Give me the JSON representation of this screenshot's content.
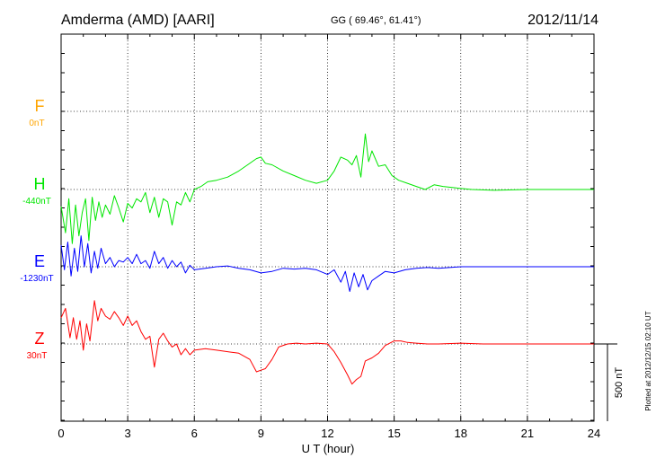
{
  "header": {
    "station": "Amderma (AMD)  [AARI]",
    "coords": "GG ( 69.46°,  61.41°)",
    "date": "2012/11/14"
  },
  "footer_note": "Plotted at 2012/12/15 02:10 UT",
  "scale_label": "500 nT",
  "chart_data": {
    "type": "line",
    "xlabel": "U T (hour)",
    "xlim": [
      0,
      24
    ],
    "xticks": [
      "0",
      "3",
      "6",
      "9",
      "12",
      "15",
      "18",
      "21",
      "24"
    ],
    "grid": true,
    "scale_bar_nT": 500,
    "series": [
      {
        "name": "F",
        "baseline_label": "0nT",
        "color": "#ffa500",
        "points": []
      },
      {
        "name": "H",
        "baseline_label": "-440nT",
        "color": "#00e600",
        "points": [
          [
            0,
            -110
          ],
          [
            0.2,
            -280
          ],
          [
            0.35,
            -60
          ],
          [
            0.5,
            -350
          ],
          [
            0.65,
            -100
          ],
          [
            0.8,
            -300
          ],
          [
            0.95,
            -150
          ],
          [
            1.1,
            -60
          ],
          [
            1.25,
            -330
          ],
          [
            1.4,
            -50
          ],
          [
            1.55,
            -200
          ],
          [
            1.7,
            -80
          ],
          [
            1.85,
            -180
          ],
          [
            2.0,
            -100
          ],
          [
            2.2,
            -160
          ],
          [
            2.4,
            -40
          ],
          [
            2.6,
            -120
          ],
          [
            2.8,
            -210
          ],
          [
            3.0,
            -90
          ],
          [
            3.2,
            -120
          ],
          [
            3.4,
            -60
          ],
          [
            3.6,
            -80
          ],
          [
            3.8,
            -20
          ],
          [
            4.0,
            -150
          ],
          [
            4.2,
            -50
          ],
          [
            4.4,
            -180
          ],
          [
            4.6,
            -60
          ],
          [
            4.8,
            -80
          ],
          [
            5.0,
            -230
          ],
          [
            5.2,
            -80
          ],
          [
            5.4,
            -100
          ],
          [
            5.6,
            -20
          ],
          [
            5.8,
            -80
          ],
          [
            6.0,
            0
          ],
          [
            6.3,
            20
          ],
          [
            6.6,
            50
          ],
          [
            7.0,
            60
          ],
          [
            7.5,
            80
          ],
          [
            8.0,
            120
          ],
          [
            8.4,
            160
          ],
          [
            8.8,
            200
          ],
          [
            9.0,
            210
          ],
          [
            9.2,
            170
          ],
          [
            9.5,
            160
          ],
          [
            10.0,
            120
          ],
          [
            10.5,
            90
          ],
          [
            11.0,
            60
          ],
          [
            11.5,
            40
          ],
          [
            12.0,
            60
          ],
          [
            12.3,
            120
          ],
          [
            12.6,
            210
          ],
          [
            12.9,
            190
          ],
          [
            13.1,
            160
          ],
          [
            13.3,
            220
          ],
          [
            13.5,
            80
          ],
          [
            13.7,
            360
          ],
          [
            13.85,
            180
          ],
          [
            14.0,
            250
          ],
          [
            14.3,
            150
          ],
          [
            14.6,
            160
          ],
          [
            14.9,
            90
          ],
          [
            15.2,
            60
          ],
          [
            15.6,
            40
          ],
          [
            16.0,
            20
          ],
          [
            16.4,
            0
          ],
          [
            16.8,
            30
          ],
          [
            17.2,
            20
          ],
          [
            17.8,
            10
          ],
          [
            18.5,
            0
          ],
          [
            19.5,
            -5
          ],
          [
            21.0,
            0
          ],
          [
            22.5,
            0
          ],
          [
            24.0,
            0
          ]
        ]
      },
      {
        "name": "E",
        "baseline_label": "-1230nT",
        "color": "#0000ff",
        "points": [
          [
            0,
            140
          ],
          [
            0.15,
            -20
          ],
          [
            0.3,
            160
          ],
          [
            0.45,
            -60
          ],
          [
            0.6,
            120
          ],
          [
            0.75,
            -30
          ],
          [
            0.9,
            200
          ],
          [
            1.05,
            0
          ],
          [
            1.2,
            150
          ],
          [
            1.35,
            -40
          ],
          [
            1.5,
            100
          ],
          [
            1.65,
            -10
          ],
          [
            1.8,
            120
          ],
          [
            2.0,
            20
          ],
          [
            2.2,
            60
          ],
          [
            2.4,
            0
          ],
          [
            2.6,
            40
          ],
          [
            2.8,
            30
          ],
          [
            3.0,
            60
          ],
          [
            3.2,
            20
          ],
          [
            3.4,
            80
          ],
          [
            3.6,
            20
          ],
          [
            3.8,
            40
          ],
          [
            4.0,
            -10
          ],
          [
            4.2,
            100
          ],
          [
            4.4,
            20
          ],
          [
            4.6,
            60
          ],
          [
            4.8,
            -10
          ],
          [
            5.0,
            40
          ],
          [
            5.2,
            0
          ],
          [
            5.4,
            30
          ],
          [
            5.6,
            -40
          ],
          [
            5.8,
            10
          ],
          [
            6.0,
            -20
          ],
          [
            6.5,
            -10
          ],
          [
            7.0,
            0
          ],
          [
            7.5,
            5
          ],
          [
            8.0,
            -10
          ],
          [
            8.5,
            -20
          ],
          [
            9.0,
            -40
          ],
          [
            9.5,
            -30
          ],
          [
            10.0,
            -10
          ],
          [
            10.5,
            -15
          ],
          [
            11.0,
            -10
          ],
          [
            11.5,
            -20
          ],
          [
            12.0,
            -50
          ],
          [
            12.3,
            -20
          ],
          [
            12.6,
            -100
          ],
          [
            12.8,
            -30
          ],
          [
            13.0,
            -160
          ],
          [
            13.2,
            -40
          ],
          [
            13.4,
            -130
          ],
          [
            13.6,
            -50
          ],
          [
            13.8,
            -150
          ],
          [
            14.0,
            -90
          ],
          [
            14.3,
            -60
          ],
          [
            14.6,
            -30
          ],
          [
            15.0,
            -40
          ],
          [
            15.5,
            -20
          ],
          [
            16.0,
            -10
          ],
          [
            16.5,
            -5
          ],
          [
            17.0,
            -10
          ],
          [
            18.0,
            0
          ],
          [
            19.0,
            0
          ],
          [
            20.0,
            0
          ],
          [
            21.0,
            0
          ],
          [
            22.0,
            0
          ],
          [
            23.0,
            0
          ],
          [
            24.0,
            0
          ]
        ]
      },
      {
        "name": "Z",
        "baseline_label": "30nT",
        "color": "#ff0000",
        "points": [
          [
            0,
            170
          ],
          [
            0.2,
            230
          ],
          [
            0.4,
            40
          ],
          [
            0.55,
            170
          ],
          [
            0.7,
            30
          ],
          [
            0.85,
            150
          ],
          [
            1.0,
            -40
          ],
          [
            1.15,
            130
          ],
          [
            1.3,
            20
          ],
          [
            1.5,
            280
          ],
          [
            1.65,
            150
          ],
          [
            1.8,
            230
          ],
          [
            2.0,
            180
          ],
          [
            2.2,
            160
          ],
          [
            2.4,
            210
          ],
          [
            2.6,
            170
          ],
          [
            2.8,
            120
          ],
          [
            3.0,
            180
          ],
          [
            3.2,
            120
          ],
          [
            3.4,
            150
          ],
          [
            3.6,
            80
          ],
          [
            3.8,
            30
          ],
          [
            4.0,
            50
          ],
          [
            4.2,
            -150
          ],
          [
            4.4,
            30
          ],
          [
            4.6,
            70
          ],
          [
            4.8,
            20
          ],
          [
            5.0,
            -20
          ],
          [
            5.2,
            0
          ],
          [
            5.4,
            -70
          ],
          [
            5.6,
            -30
          ],
          [
            5.8,
            -70
          ],
          [
            6.0,
            -40
          ],
          [
            6.5,
            -30
          ],
          [
            7.0,
            -40
          ],
          [
            7.5,
            -50
          ],
          [
            8.0,
            -60
          ],
          [
            8.5,
            -100
          ],
          [
            8.8,
            -180
          ],
          [
            9.0,
            -170
          ],
          [
            9.2,
            -160
          ],
          [
            9.5,
            -100
          ],
          [
            9.8,
            -20
          ],
          [
            10.2,
            0
          ],
          [
            10.6,
            5
          ],
          [
            11.0,
            0
          ],
          [
            11.5,
            5
          ],
          [
            12.0,
            0
          ],
          [
            12.3,
            -50
          ],
          [
            12.6,
            -120
          ],
          [
            12.9,
            -200
          ],
          [
            13.1,
            -260
          ],
          [
            13.3,
            -230
          ],
          [
            13.5,
            -210
          ],
          [
            13.7,
            -110
          ],
          [
            14.0,
            -90
          ],
          [
            14.3,
            -60
          ],
          [
            14.6,
            -10
          ],
          [
            15.0,
            20
          ],
          [
            15.3,
            20
          ],
          [
            15.6,
            10
          ],
          [
            16.0,
            5
          ],
          [
            16.5,
            0
          ],
          [
            17.0,
            0
          ],
          [
            18.0,
            5
          ],
          [
            19.0,
            0
          ],
          [
            20.0,
            0
          ],
          [
            21.0,
            0
          ],
          [
            22.0,
            0
          ],
          [
            23.0,
            0
          ],
          [
            24.0,
            0
          ]
        ]
      }
    ]
  }
}
